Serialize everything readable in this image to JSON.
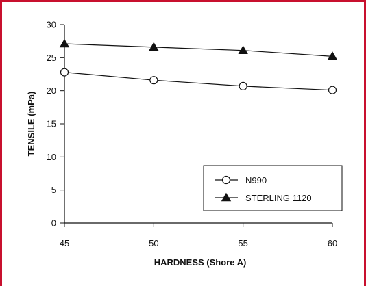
{
  "colors": {
    "frame": "#c8102e",
    "ink": "#111111"
  },
  "chart_data": {
    "type": "line",
    "title": "",
    "xlabel": "HARDNESS (Shore A)",
    "ylabel": "TENSILE (mPa)",
    "x": [
      45,
      50,
      55,
      60
    ],
    "xlim": [
      45,
      60
    ],
    "ylim": [
      0,
      30
    ],
    "xticks": [
      "45",
      "50",
      "55",
      "60"
    ],
    "yticks": [
      "0",
      "5",
      "10",
      "15",
      "20",
      "25",
      "30"
    ],
    "grid": false,
    "legend": "lower-right",
    "series": [
      {
        "name": "N990",
        "marker": "open-circle",
        "values": [
          22.8,
          21.6,
          20.7,
          20.1
        ]
      },
      {
        "name": "STERLING 1120",
        "marker": "filled-triangle",
        "values": [
          27.1,
          26.6,
          26.1,
          25.2
        ]
      }
    ]
  }
}
